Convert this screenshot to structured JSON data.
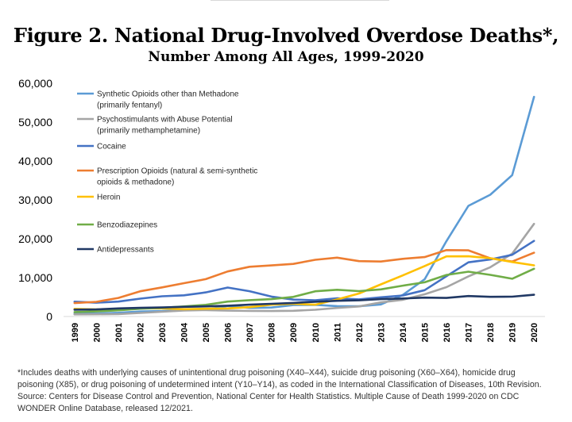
{
  "chart_data": {
    "type": "line",
    "title": "Figure 2. National Drug-Involved Overdose Deaths*,",
    "subtitle": "Number Among All Ages, 1999-2020",
    "xlabel": "",
    "ylabel": "",
    "ylim": [
      0,
      60000
    ],
    "yticks": [
      "0",
      "10,000",
      "20,000",
      "30,000",
      "40,000",
      "50,000",
      "60,000"
    ],
    "x": [
      "1999",
      "2000",
      "2001",
      "2002",
      "2003",
      "2004",
      "2005",
      "2006",
      "2007",
      "2008",
      "2009",
      "2010",
      "2011",
      "2012",
      "2013",
      "2014",
      "2015",
      "2016",
      "2017",
      "2018",
      "2019",
      "2020"
    ],
    "grid": false,
    "legend": "top-left",
    "series": [
      {
        "name_lines": [
          "Synthetic Opioids other than Methadone",
          "(primarily fentanyl)"
        ],
        "color": "#5B9BD5",
        "values": [
          730,
          782,
          957,
          1295,
          1400,
          1664,
          1742,
          2707,
          2213,
          2306,
          2946,
          3007,
          2666,
          2628,
          3105,
          5544,
          9580,
          19413,
          28466,
          31335,
          36359,
          56516
        ]
      },
      {
        "name_lines": [
          "Psychostimulants with Abuse Potential",
          "(primarily methamphetamine)"
        ],
        "color": "#A5A5A5",
        "values": [
          547,
          578,
          627,
          926,
          1228,
          1553,
          1651,
          1515,
          1423,
          1410,
          1470,
          1731,
          2212,
          2602,
          3627,
          4298,
          5716,
          7542,
          10333,
          12676,
          16167,
          23837
        ]
      },
      {
        "name_lines": [
          "Cocaine"
        ],
        "color": "#4472C4",
        "values": [
          3822,
          3544,
          3833,
          4599,
          5199,
          5443,
          6208,
          7448,
          6512,
          5129,
          4350,
          4183,
          4681,
          4404,
          4944,
          5415,
          6784,
          10375,
          13942,
          14666,
          15883,
          19447
        ]
      },
      {
        "name_lines": [
          "Prescription Opioids (natural & semi-synthetic",
          "opioids & methadone)"
        ],
        "color": "#ED7D31",
        "values": [
          3442,
          3785,
          4770,
          6483,
          7500,
          8577,
          9612,
          11589,
          12796,
          13149,
          13523,
          14583,
          15140,
          14240,
          14145,
          14838,
          15281,
          17087,
          17029,
          14975,
          14139,
          16416
        ]
      },
      {
        "name_lines": [
          "Heroin"
        ],
        "color": "#FFC000",
        "values": [
          1960,
          1842,
          1779,
          2089,
          2080,
          1878,
          2009,
          2088,
          2399,
          3041,
          3278,
          3036,
          4397,
          5925,
          8257,
          10574,
          12989,
          15469,
          15482,
          14996,
          14019,
          13165
        ]
      },
      {
        "name_lines": [
          "Benzodiazepines"
        ],
        "color": "#70AD47",
        "values": [
          1135,
          1298,
          1594,
          2007,
          2248,
          2585,
          2996,
          3835,
          4213,
          4460,
          5041,
          6497,
          6872,
          6524,
          6973,
          7945,
          8791,
          10684,
          11537,
          10724,
          9711,
          12290
        ]
      },
      {
        "name_lines": [
          "Antidepressants"
        ],
        "color": "#203864",
        "values": [
          1749,
          1810,
          2078,
          2218,
          2327,
          2500,
          2609,
          2777,
          3040,
          3274,
          3498,
          3789,
          4050,
          4162,
          4468,
          4637,
          4854,
          4783,
          5269,
          5064,
          5111,
          5597
        ]
      }
    ]
  },
  "footnote": {
    "lines": [
      "*Includes deaths with underlying causes of unintentional drug poisoning (X40–X44), suicide drug poisoning (X60–X64), homicide drug",
      "poisoning (X85), or drug poisoning of undetermined intent (Y10–Y14), as coded in the International Classification of Diseases, 10th Revision.",
      "Source: Centers for Disease Control and Prevention, National Center for Health Statistics. Multiple Cause of Death 1999-2020 on CDC",
      "WONDER Online Database, released 12/2021."
    ]
  }
}
